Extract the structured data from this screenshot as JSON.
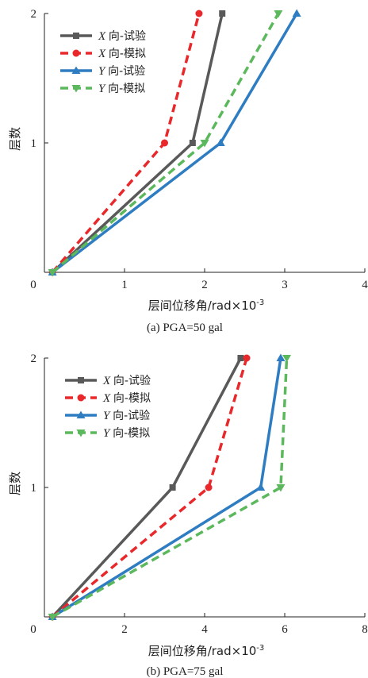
{
  "chart_data": [
    {
      "type": "line",
      "caption": "(a) PGA=50 gal",
      "xlabel": "层间位移角/rad×10",
      "xlabel_exp": "-3",
      "ylabel": "层数",
      "xlim": [
        0,
        4
      ],
      "ylim": [
        0,
        2
      ],
      "xticks": [
        0,
        1,
        2,
        3,
        4
      ],
      "yticks": [
        1,
        2
      ],
      "grid": false,
      "legend_position": "top-left",
      "series": [
        {
          "prefix": "X",
          "name": "向-试验",
          "color": "#595959",
          "dash": "solid",
          "marker": "square",
          "x": [
            0.1,
            1.85,
            2.22
          ],
          "y": [
            0,
            1,
            2
          ]
        },
        {
          "prefix": "X",
          "name": "向-模拟",
          "color": "#e8282b",
          "dash": "dashed",
          "marker": "circle",
          "x": [
            0.1,
            1.5,
            1.93
          ],
          "y": [
            0,
            1,
            2
          ]
        },
        {
          "prefix": "Y",
          "name": "向-试验",
          "color": "#2e7dc2",
          "dash": "solid",
          "marker": "triangle-up",
          "x": [
            0.1,
            2.2,
            3.15
          ],
          "y": [
            0,
            1,
            2
          ]
        },
        {
          "prefix": "Y",
          "name": "向-模拟",
          "color": "#5cb85c",
          "dash": "dashed",
          "marker": "triangle-down",
          "x": [
            0.1,
            2.0,
            2.92
          ],
          "y": [
            0,
            1,
            2
          ]
        }
      ]
    },
    {
      "type": "line",
      "caption": "(b) PGA=75 gal",
      "xlabel": "层间位移角/rad×10",
      "xlabel_exp": "-3",
      "ylabel": "层数",
      "xlim": [
        0,
        8
      ],
      "ylim": [
        0,
        2
      ],
      "xticks": [
        0,
        2,
        4,
        6,
        8
      ],
      "yticks": [
        1,
        2
      ],
      "grid": false,
      "legend_position": "top-left",
      "series": [
        {
          "prefix": "X",
          "name": "向-试验",
          "color": "#595959",
          "dash": "solid",
          "marker": "square",
          "x": [
            0.2,
            3.2,
            4.9
          ],
          "y": [
            0,
            1,
            2
          ]
        },
        {
          "prefix": "X",
          "name": "向-模拟",
          "color": "#e8282b",
          "dash": "dashed",
          "marker": "circle",
          "x": [
            0.2,
            4.1,
            5.05
          ],
          "y": [
            0,
            1,
            2
          ]
        },
        {
          "prefix": "Y",
          "name": "向-试验",
          "color": "#2e7dc2",
          "dash": "solid",
          "marker": "triangle-up",
          "x": [
            0.2,
            5.4,
            5.9
          ],
          "y": [
            0,
            1,
            2
          ]
        },
        {
          "prefix": "Y",
          "name": "向-模拟",
          "color": "#5cb85c",
          "dash": "dashed",
          "marker": "triangle-down",
          "x": [
            0.2,
            5.9,
            6.05
          ],
          "y": [
            0,
            1,
            2
          ]
        }
      ]
    }
  ]
}
